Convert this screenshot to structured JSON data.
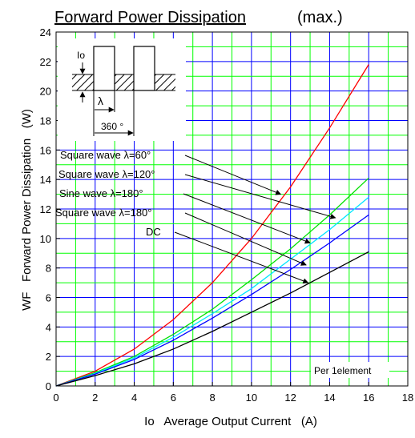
{
  "chart_data": {
    "type": "line",
    "title": "Forward Power Dissipation",
    "title_suffix": "(max.)",
    "xlabel": "Io   Average Output Current   (A)",
    "ylabel": "WF   Forward Power Dissipation   (W)",
    "xlim": [
      0,
      18
    ],
    "ylim": [
      0,
      24
    ],
    "x_ticks": [
      "0",
      "2",
      "4",
      "6",
      "8",
      "10",
      "12",
      "14",
      "16",
      "18"
    ],
    "y_ticks": [
      "0",
      "2",
      "4",
      "6",
      "8",
      "10",
      "12",
      "14",
      "16",
      "18",
      "20",
      "22",
      "24"
    ],
    "grid": true,
    "grid_colors": {
      "major": "#0000ff",
      "minor": "#00ff00"
    },
    "note": "Per 1element",
    "series": [
      {
        "name": "Square wave λ=60°",
        "color": "#ff0000",
        "x": [
          0,
          2,
          4,
          6,
          8,
          10,
          12,
          14,
          16
        ],
        "y": [
          0,
          1.0,
          2.5,
          4.5,
          7.0,
          10.0,
          13.5,
          17.5,
          21.8
        ]
      },
      {
        "name": "Square wave λ=120°",
        "color": "#00e000",
        "x": [
          0,
          2,
          4,
          6,
          8,
          10,
          12,
          14,
          16
        ],
        "y": [
          0,
          0.9,
          2.0,
          3.5,
          5.2,
          7.2,
          9.3,
          11.6,
          14.1
        ]
      },
      {
        "name": "Sine wave λ=180°",
        "color": "#00e5ff",
        "x": [
          0,
          2,
          4,
          6,
          8,
          10,
          12,
          14,
          16
        ],
        "y": [
          0,
          0.85,
          1.9,
          3.3,
          4.9,
          6.6,
          8.6,
          10.6,
          12.8
        ]
      },
      {
        "name": "Square wave λ=180°",
        "color": "#0000ff",
        "x": [
          0,
          2,
          4,
          6,
          8,
          10,
          12,
          14,
          16
        ],
        "y": [
          0,
          0.8,
          1.8,
          3.1,
          4.6,
          6.2,
          7.9,
          9.7,
          11.6
        ]
      },
      {
        "name": "DC",
        "color": "#000000",
        "x": [
          0,
          2,
          4,
          6,
          8,
          10,
          12,
          14,
          16
        ],
        "y": [
          0,
          0.7,
          1.5,
          2.5,
          3.7,
          5.0,
          6.3,
          7.7,
          9.1
        ]
      }
    ],
    "inset": {
      "io_label": "Io",
      "lambda_label": "λ",
      "period_label": "360 °"
    }
  }
}
